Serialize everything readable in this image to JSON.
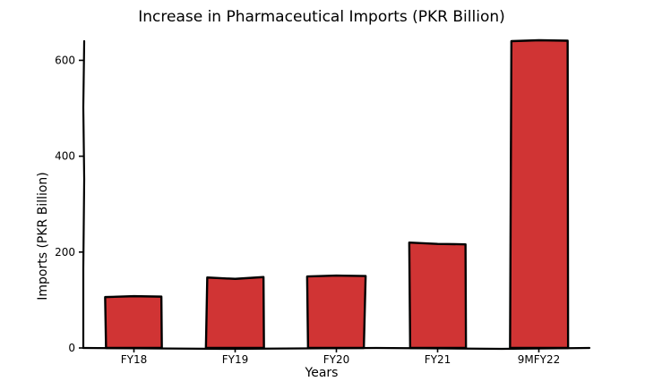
{
  "chart_data": {
    "type": "bar",
    "title": "Increase in Pharmaceutical Imports (PKR Billion)",
    "xlabel": "Years",
    "ylabel": "Imports (PKR Billion)",
    "categories": [
      "FY18",
      "FY19",
      "FY20",
      "FY21",
      "9MFY22"
    ],
    "values": [
      108,
      146,
      150,
      218,
      640
    ],
    "yticks": [
      0,
      200,
      400,
      600
    ],
    "ylim": [
      0,
      640
    ],
    "bar_color": "#d03434",
    "grid": false
  }
}
